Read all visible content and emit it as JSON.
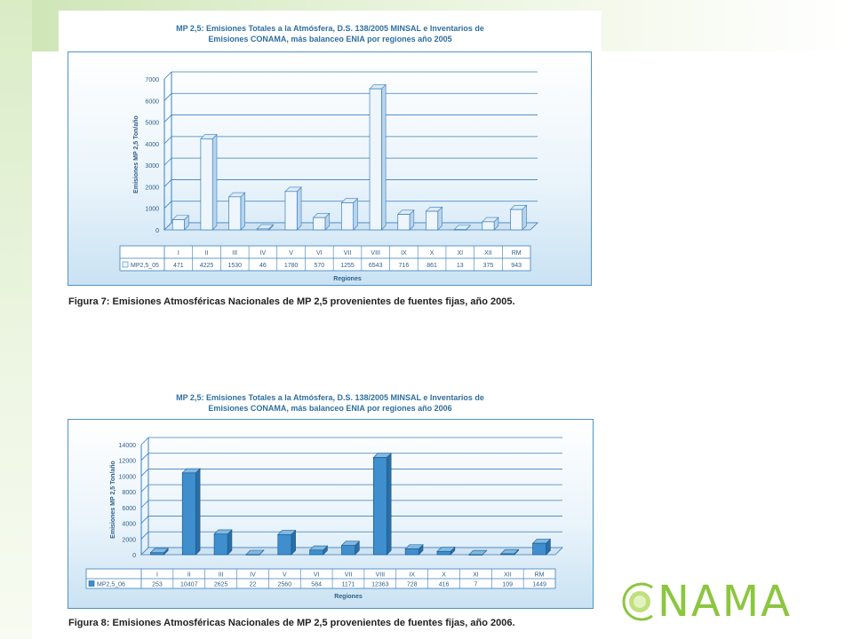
{
  "slide": {
    "logo_text": "NAMA"
  },
  "figures": [
    {
      "title_line1": "MP 2,5: Emisiones Totales a la Atmósfera, D.S. 138/2005 MINSAL e Inventarios de",
      "title_line2": "Emisiones CONAMA, más balanceo ENIA por regiones año 2005",
      "caption": "Figura 7: Emisiones Atmosféricas Nacionales de MP 2,5 provenientes de fuentes fijas, año 2005."
    },
    {
      "title_line1": "MP 2,5: Emisiones Totales a la Atmósfera, D.S. 138/2005 MINSAL e Inventarios de",
      "title_line2": "Emisiones CONAMA, más balanceo ENIA por regiones año 2006",
      "caption": "Figura 8: Emisiones Atmosféricas Nacionales de MP 2,5 provenientes de fuentes fijas, año 2006."
    }
  ],
  "chart_data": [
    {
      "type": "bar",
      "title": "MP 2,5: Emisiones Totales a la Atmósfera, D.S. 138/2005 MINSAL e Inventarios de Emisiones CONAMA, más balanceo ENIA por regiones año 2005",
      "categories": [
        "I",
        "II",
        "III",
        "IV",
        "V",
        "VI",
        "VII",
        "VIII",
        "IX",
        "X",
        "XI",
        "XII",
        "RM"
      ],
      "series": [
        {
          "name": "MP2,5_05",
          "values": [
            471,
            4225,
            1530,
            46,
            1780,
            570,
            1255,
            6543,
            716,
            861,
            13,
            375,
            943
          ]
        }
      ],
      "value_labels": [
        "471",
        "4225",
        "1530",
        "46",
        "1780",
        "570",
        "1255",
        "6543",
        "716",
        "861",
        "13",
        "375",
        "943"
      ],
      "xlabel": "Regiones",
      "ylabel": "Emisiones MP 2,5 Ton/año",
      "ylim": [
        0,
        7000
      ],
      "yticks": [
        0,
        1000,
        2000,
        3000,
        4000,
        5000,
        6000,
        7000
      ],
      "ytick_labels": [
        "0",
        "1000",
        "2000",
        "3000",
        "4000",
        "5000",
        "6000",
        "7000"
      ],
      "grid": true,
      "legend": "table-left",
      "bar_style": "light",
      "colors": {
        "bar_front": "#eef6fc",
        "bar_side": "#b9d4ea",
        "bar_top": "#dcebf7",
        "bar_edge": "#3a7ebf"
      }
    },
    {
      "type": "bar",
      "title": "MP 2,5: Emisiones Totales a la Atmósfera, D.S. 138/2005 MINSAL e Inventarios de Emisiones CONAMA, más balanceo ENIA por regiones año 2006",
      "categories": [
        "I",
        "II",
        "III",
        "IV",
        "V",
        "VI",
        "VII",
        "VIII",
        "IX",
        "X",
        "XI",
        "XII",
        "RM"
      ],
      "series": [
        {
          "name": "MP2,5_06",
          "values": [
            253,
            10407,
            2625,
            22,
            2560,
            584,
            1171,
            12363,
            728,
            416,
            7,
            109,
            1449
          ]
        }
      ],
      "value_labels": [
        "253",
        "10407",
        "2625",
        "22",
        "2560",
        "584",
        "1171",
        "12363",
        "728",
        "416",
        "7",
        "109",
        "1449"
      ],
      "xlabel": "Regiones",
      "ylabel": "Emisiones MP 2,5 Ton/año",
      "ylim": [
        0,
        14000
      ],
      "yticks": [
        0,
        2000,
        4000,
        6000,
        8000,
        10000,
        12000,
        14000
      ],
      "ytick_labels": [
        "0",
        "2000",
        "4000",
        "6000",
        "8000",
        "10000",
        "12000",
        "14000"
      ],
      "grid": true,
      "legend": "table-left",
      "bar_style": "dark",
      "colors": {
        "bar_front": "#3f8fcf",
        "bar_side": "#2a6ea6",
        "bar_top": "#7fb9e4",
        "bar_edge": "#1e5a8a"
      }
    }
  ]
}
